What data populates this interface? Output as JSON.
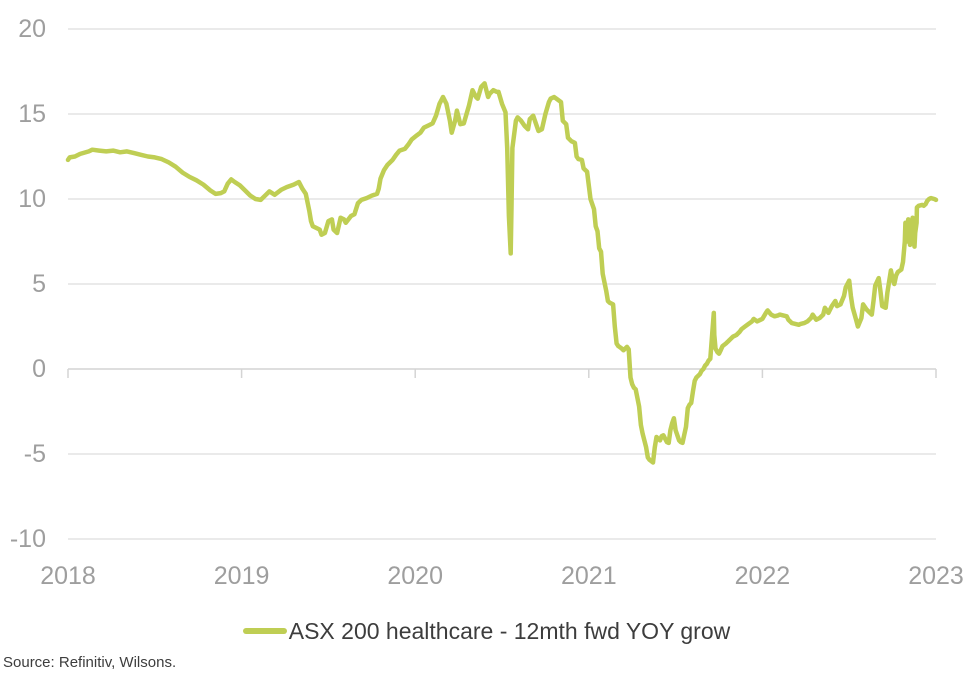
{
  "chart_data": {
    "type": "line",
    "title": "",
    "xlabel": "",
    "ylabel": "",
    "x_ticks": [
      2018,
      2019,
      2020,
      2021,
      2022,
      2023
    ],
    "y_ticks": [
      20,
      15,
      10,
      5,
      0,
      -5,
      -10
    ],
    "xlim": [
      2018,
      2023
    ],
    "ylim": [
      -10,
      20
    ],
    "grid": "horizontal-gridlines",
    "legend_position": "bottom-center",
    "series": [
      {
        "name": "ASX 200 healthcare - 12mth fwd YOY grow",
        "color": "#bfce54",
        "points": [
          [
            2018.0,
            12.3
          ],
          [
            2018.01,
            12.45
          ],
          [
            2018.04,
            12.5
          ],
          [
            2018.07,
            12.65
          ],
          [
            2018.12,
            12.8
          ],
          [
            2018.14,
            12.9
          ],
          [
            2018.18,
            12.85
          ],
          [
            2018.22,
            12.8
          ],
          [
            2018.26,
            12.85
          ],
          [
            2018.3,
            12.75
          ],
          [
            2018.34,
            12.8
          ],
          [
            2018.38,
            12.7
          ],
          [
            2018.42,
            12.6
          ],
          [
            2018.46,
            12.5
          ],
          [
            2018.5,
            12.45
          ],
          [
            2018.54,
            12.35
          ],
          [
            2018.58,
            12.15
          ],
          [
            2018.62,
            11.9
          ],
          [
            2018.66,
            11.55
          ],
          [
            2018.7,
            11.3
          ],
          [
            2018.74,
            11.1
          ],
          [
            2018.78,
            10.85
          ],
          [
            2018.82,
            10.5
          ],
          [
            2018.85,
            10.3
          ],
          [
            2018.88,
            10.35
          ],
          [
            2018.9,
            10.45
          ],
          [
            2018.92,
            10.9
          ],
          [
            2018.94,
            11.15
          ],
          [
            2018.96,
            11.0
          ],
          [
            2018.99,
            10.8
          ],
          [
            2019.02,
            10.5
          ],
          [
            2019.05,
            10.2
          ],
          [
            2019.08,
            10.0
          ],
          [
            2019.11,
            9.95
          ],
          [
            2019.14,
            10.25
          ],
          [
            2019.16,
            10.45
          ],
          [
            2019.19,
            10.25
          ],
          [
            2019.23,
            10.55
          ],
          [
            2019.26,
            10.7
          ],
          [
            2019.3,
            10.85
          ],
          [
            2019.33,
            11.0
          ],
          [
            2019.35,
            10.6
          ],
          [
            2019.37,
            10.3
          ],
          [
            2019.39,
            9.3
          ],
          [
            2019.4,
            8.7
          ],
          [
            2019.41,
            8.4
          ],
          [
            2019.43,
            8.3
          ],
          [
            2019.45,
            8.2
          ],
          [
            2019.46,
            7.9
          ],
          [
            2019.48,
            8.0
          ],
          [
            2019.5,
            8.7
          ],
          [
            2019.52,
            8.8
          ],
          [
            2019.53,
            8.2
          ],
          [
            2019.55,
            8.0
          ],
          [
            2019.57,
            8.9
          ],
          [
            2019.59,
            8.8
          ],
          [
            2019.6,
            8.6
          ],
          [
            2019.63,
            9.0
          ],
          [
            2019.65,
            9.1
          ],
          [
            2019.67,
            9.75
          ],
          [
            2019.69,
            9.95
          ],
          [
            2019.72,
            10.05
          ],
          [
            2019.75,
            10.2
          ],
          [
            2019.78,
            10.3
          ],
          [
            2019.79,
            10.6
          ],
          [
            2019.8,
            11.2
          ],
          [
            2019.82,
            11.7
          ],
          [
            2019.84,
            12.0
          ],
          [
            2019.87,
            12.3
          ],
          [
            2019.89,
            12.6
          ],
          [
            2019.91,
            12.85
          ],
          [
            2019.94,
            12.95
          ],
          [
            2019.96,
            13.2
          ],
          [
            2019.98,
            13.5
          ],
          [
            2020.01,
            13.75
          ],
          [
            2020.03,
            13.9
          ],
          [
            2020.05,
            14.2
          ],
          [
            2020.08,
            14.35
          ],
          [
            2020.1,
            14.45
          ],
          [
            2020.12,
            14.9
          ],
          [
            2020.14,
            15.6
          ],
          [
            2020.16,
            16.0
          ],
          [
            2020.18,
            15.6
          ],
          [
            2020.2,
            14.6
          ],
          [
            2020.21,
            13.9
          ],
          [
            2020.23,
            14.6
          ],
          [
            2020.24,
            15.2
          ],
          [
            2020.26,
            14.4
          ],
          [
            2020.28,
            14.45
          ],
          [
            2020.31,
            15.5
          ],
          [
            2020.33,
            16.4
          ],
          [
            2020.35,
            16.0
          ],
          [
            2020.36,
            15.9
          ],
          [
            2020.38,
            16.6
          ],
          [
            2020.4,
            16.8
          ],
          [
            2020.42,
            16.0
          ],
          [
            2020.43,
            16.2
          ],
          [
            2020.45,
            16.4
          ],
          [
            2020.47,
            16.3
          ],
          [
            2020.48,
            16.3
          ],
          [
            2020.5,
            15.6
          ],
          [
            2020.52,
            15.1
          ],
          [
            2020.53,
            13.0
          ],
          [
            2020.54,
            9.0
          ],
          [
            2020.55,
            6.8
          ],
          [
            2020.555,
            9.5
          ],
          [
            2020.56,
            13.0
          ],
          [
            2020.58,
            14.6
          ],
          [
            2020.59,
            14.8
          ],
          [
            2020.61,
            14.6
          ],
          [
            2020.63,
            14.3
          ],
          [
            2020.65,
            14.1
          ],
          [
            2020.66,
            14.7
          ],
          [
            2020.68,
            14.9
          ],
          [
            2020.7,
            14.3
          ],
          [
            2020.71,
            14.0
          ],
          [
            2020.73,
            14.1
          ],
          [
            2020.75,
            15.0
          ],
          [
            2020.77,
            15.7
          ],
          [
            2020.78,
            15.9
          ],
          [
            2020.8,
            16.0
          ],
          [
            2020.82,
            15.85
          ],
          [
            2020.84,
            15.7
          ],
          [
            2020.85,
            14.6
          ],
          [
            2020.87,
            14.4
          ],
          [
            2020.88,
            13.6
          ],
          [
            2020.9,
            13.4
          ],
          [
            2020.92,
            13.3
          ],
          [
            2020.93,
            12.5
          ],
          [
            2020.94,
            12.35
          ],
          [
            2020.96,
            12.3
          ],
          [
            2020.97,
            11.8
          ],
          [
            2020.99,
            11.6
          ],
          [
            2021.0,
            10.8
          ],
          [
            2021.01,
            10.0
          ],
          [
            2021.03,
            9.4
          ],
          [
            2021.04,
            8.4
          ],
          [
            2021.05,
            8.1
          ],
          [
            2021.06,
            7.1
          ],
          [
            2021.07,
            6.9
          ],
          [
            2021.08,
            5.6
          ],
          [
            2021.1,
            4.6
          ],
          [
            2021.11,
            4.0
          ],
          [
            2021.12,
            3.9
          ],
          [
            2021.14,
            3.8
          ],
          [
            2021.15,
            2.5
          ],
          [
            2021.16,
            1.5
          ],
          [
            2021.17,
            1.35
          ],
          [
            2021.19,
            1.2
          ],
          [
            2021.2,
            1.1
          ],
          [
            2021.22,
            1.3
          ],
          [
            2021.23,
            1.15
          ],
          [
            2021.24,
            -0.5
          ],
          [
            2021.25,
            -0.9
          ],
          [
            2021.26,
            -1.1
          ],
          [
            2021.27,
            -1.2
          ],
          [
            2021.29,
            -2.2
          ],
          [
            2021.3,
            -3.3
          ],
          [
            2021.31,
            -3.8
          ],
          [
            2021.33,
            -4.6
          ],
          [
            2021.34,
            -5.2
          ],
          [
            2021.35,
            -5.35
          ],
          [
            2021.37,
            -5.5
          ],
          [
            2021.38,
            -4.6
          ],
          [
            2021.39,
            -4.0
          ],
          [
            2021.4,
            -4.1
          ],
          [
            2021.41,
            -4.2
          ],
          [
            2021.42,
            -3.95
          ],
          [
            2021.43,
            -3.9
          ],
          [
            2021.45,
            -4.3
          ],
          [
            2021.46,
            -4.35
          ],
          [
            2021.47,
            -3.6
          ],
          [
            2021.48,
            -3.2
          ],
          [
            2021.49,
            -2.9
          ],
          [
            2021.5,
            -3.6
          ],
          [
            2021.52,
            -4.2
          ],
          [
            2021.53,
            -4.3
          ],
          [
            2021.54,
            -4.35
          ],
          [
            2021.56,
            -3.4
          ],
          [
            2021.57,
            -2.3
          ],
          [
            2021.58,
            -2.1
          ],
          [
            2021.59,
            -2.0
          ],
          [
            2021.6,
            -1.3
          ],
          [
            2021.61,
            -0.7
          ],
          [
            2021.62,
            -0.5
          ],
          [
            2021.64,
            -0.3
          ],
          [
            2021.65,
            -0.1
          ],
          [
            2021.66,
            0.0
          ],
          [
            2021.67,
            0.2
          ],
          [
            2021.68,
            0.3
          ],
          [
            2021.69,
            0.5
          ],
          [
            2021.7,
            0.6
          ],
          [
            2021.71,
            2.0
          ],
          [
            2021.72,
            3.3
          ],
          [
            2021.723,
            2.0
          ],
          [
            2021.73,
            1.2
          ],
          [
            2021.74,
            1.0
          ],
          [
            2021.75,
            0.9
          ],
          [
            2021.76,
            1.1
          ],
          [
            2021.77,
            1.35
          ],
          [
            2021.79,
            1.5
          ],
          [
            2021.8,
            1.6
          ],
          [
            2021.81,
            1.7
          ],
          [
            2021.82,
            1.8
          ],
          [
            2021.83,
            1.9
          ],
          [
            2021.85,
            2.0
          ],
          [
            2021.87,
            2.2
          ],
          [
            2021.88,
            2.35
          ],
          [
            2021.9,
            2.5
          ],
          [
            2021.92,
            2.65
          ],
          [
            2021.94,
            2.8
          ],
          [
            2021.95,
            2.95
          ],
          [
            2021.97,
            2.8
          ],
          [
            2021.99,
            2.9
          ],
          [
            2022.0,
            2.95
          ],
          [
            2022.02,
            3.3
          ],
          [
            2022.03,
            3.45
          ],
          [
            2022.05,
            3.2
          ],
          [
            2022.07,
            3.1
          ],
          [
            2022.09,
            3.15
          ],
          [
            2022.1,
            3.2
          ],
          [
            2022.12,
            3.15
          ],
          [
            2022.14,
            3.1
          ],
          [
            2022.15,
            2.9
          ],
          [
            2022.17,
            2.7
          ],
          [
            2022.19,
            2.65
          ],
          [
            2022.21,
            2.6
          ],
          [
            2022.22,
            2.65
          ],
          [
            2022.24,
            2.7
          ],
          [
            2022.26,
            2.8
          ],
          [
            2022.28,
            3.0
          ],
          [
            2022.29,
            3.2
          ],
          [
            2022.31,
            2.9
          ],
          [
            2022.33,
            3.0
          ],
          [
            2022.35,
            3.2
          ],
          [
            2022.36,
            3.6
          ],
          [
            2022.38,
            3.3
          ],
          [
            2022.4,
            3.7
          ],
          [
            2022.42,
            4.0
          ],
          [
            2022.43,
            3.7
          ],
          [
            2022.45,
            3.8
          ],
          [
            2022.47,
            4.3
          ],
          [
            2022.48,
            4.8
          ],
          [
            2022.5,
            5.2
          ],
          [
            2022.51,
            4.3
          ],
          [
            2022.52,
            3.6
          ],
          [
            2022.54,
            2.9
          ],
          [
            2022.55,
            2.5
          ],
          [
            2022.57,
            3.0
          ],
          [
            2022.58,
            3.8
          ],
          [
            2022.6,
            3.5
          ],
          [
            2022.62,
            3.3
          ],
          [
            2022.63,
            3.2
          ],
          [
            2022.64,
            4.0
          ],
          [
            2022.65,
            4.9
          ],
          [
            2022.67,
            5.35
          ],
          [
            2022.68,
            4.6
          ],
          [
            2022.69,
            3.7
          ],
          [
            2022.71,
            3.6
          ],
          [
            2022.72,
            4.5
          ],
          [
            2022.74,
            5.8
          ],
          [
            2022.75,
            5.3
          ],
          [
            2022.76,
            5.0
          ],
          [
            2022.77,
            5.5
          ],
          [
            2022.78,
            5.7
          ],
          [
            2022.8,
            5.85
          ],
          [
            2022.81,
            6.3
          ],
          [
            2022.82,
            7.5
          ],
          [
            2022.824,
            8.6
          ],
          [
            2022.83,
            7.8
          ],
          [
            2022.836,
            7.5
          ],
          [
            2022.84,
            8.8
          ],
          [
            2022.847,
            7.8
          ],
          [
            2022.85,
            7.3
          ],
          [
            2022.86,
            8.2
          ],
          [
            2022.865,
            8.9
          ],
          [
            2022.87,
            7.8
          ],
          [
            2022.876,
            7.2
          ],
          [
            2022.88,
            8.0
          ],
          [
            2022.888,
            8.6
          ],
          [
            2022.89,
            9.5
          ],
          [
            2022.9,
            9.6
          ],
          [
            2022.92,
            9.65
          ],
          [
            2022.93,
            9.6
          ],
          [
            2022.94,
            9.7
          ],
          [
            2022.95,
            9.9
          ],
          [
            2022.96,
            10.0
          ],
          [
            2022.97,
            10.05
          ],
          [
            2022.99,
            10.0
          ],
          [
            2023.0,
            9.95
          ]
        ]
      }
    ]
  },
  "legend": {
    "label": "ASX 200 healthcare - 12mth fwd YOY grow"
  },
  "source_note": "Source: Refinitiv, Wilsons.",
  "colors": {
    "series": "#bfce54",
    "grid": "#e3e3e3",
    "axis_line": "#d4d4d4",
    "axis_labels": "#9e9e9e",
    "legend_text": "#3d3d3d",
    "source_text": "#3d3d3d",
    "background": "#ffffff"
  }
}
